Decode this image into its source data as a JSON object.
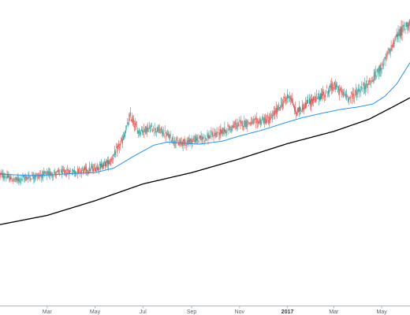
{
  "chart_data": {
    "type": "candlestick",
    "title": "",
    "xlabel": "",
    "ylabel": "",
    "x_tick_labels": [
      {
        "label": "Mar",
        "date": "2016-03-01",
        "bold": false
      },
      {
        "label": "May",
        "date": "2016-05-01",
        "bold": false
      },
      {
        "label": "Jul",
        "date": "2016-07-01",
        "bold": false
      },
      {
        "label": "Sep",
        "date": "2016-09-01",
        "bold": false
      },
      {
        "label": "Nov",
        "date": "2016-11-01",
        "bold": false
      },
      {
        "label": "2017",
        "date": "2017-01-01",
        "bold": true
      },
      {
        "label": "Mar",
        "date": "2017-03-01",
        "bold": false
      },
      {
        "label": "May",
        "date": "2017-05-01",
        "bold": false
      }
    ],
    "x_range": [
      "2016-01-01",
      "2017-06-06"
    ],
    "y_range": [
      0,
      100
    ],
    "grid": false,
    "legend": "none",
    "colors": {
      "up": "#26a69a",
      "down": "#ef5350",
      "ma_fast": "#2196f3",
      "ma_slow": "#000000",
      "axis": "#b2b5be",
      "text": "#5a5f6a"
    },
    "price_path": [
      [
        "2016-01-01",
        43
      ],
      [
        "2016-01-20",
        41
      ],
      [
        "2016-02-05",
        42
      ],
      [
        "2016-03-01",
        43
      ],
      [
        "2016-03-20",
        43.5
      ],
      [
        "2016-04-10",
        44
      ],
      [
        "2016-05-01",
        45
      ],
      [
        "2016-05-20",
        47
      ],
      [
        "2016-06-05",
        54
      ],
      [
        "2016-06-15",
        62
      ],
      [
        "2016-06-25",
        57
      ],
      [
        "2016-07-10",
        58
      ],
      [
        "2016-07-25",
        57
      ],
      [
        "2016-08-05",
        55
      ],
      [
        "2016-08-15",
        53
      ],
      [
        "2016-09-01",
        54
      ],
      [
        "2016-09-20",
        55
      ],
      [
        "2016-10-10",
        57
      ],
      [
        "2016-11-01",
        59.5
      ],
      [
        "2016-11-20",
        60
      ],
      [
        "2016-12-10",
        61
      ],
      [
        "2016-12-25",
        66
      ],
      [
        "2017-01-04",
        69
      ],
      [
        "2017-01-12",
        63
      ],
      [
        "2017-01-25",
        66
      ],
      [
        "2017-02-15",
        69
      ],
      [
        "2017-03-01",
        72
      ],
      [
        "2017-03-10",
        70
      ],
      [
        "2017-03-20",
        68
      ],
      [
        "2017-04-01",
        70
      ],
      [
        "2017-04-20",
        74
      ],
      [
        "2017-05-05",
        80
      ],
      [
        "2017-05-20",
        88
      ],
      [
        "2017-06-06",
        93
      ]
    ],
    "ma_fast_path": [
      [
        "2016-01-01",
        43
      ],
      [
        "2016-02-15",
        42.5
      ],
      [
        "2016-04-01",
        43.2
      ],
      [
        "2016-05-01",
        43.5
      ],
      [
        "2016-05-25",
        45
      ],
      [
        "2016-06-20",
        49
      ],
      [
        "2016-07-15",
        52.5
      ],
      [
        "2016-08-01",
        53.5
      ],
      [
        "2016-08-20",
        53.2
      ],
      [
        "2016-09-10",
        52.8
      ],
      [
        "2016-10-10",
        53.8
      ],
      [
        "2016-11-01",
        55.5
      ],
      [
        "2016-12-01",
        57.5
      ],
      [
        "2016-12-25",
        59.5
      ],
      [
        "2017-01-20",
        61.5
      ],
      [
        "2017-02-15",
        63
      ],
      [
        "2017-03-10",
        64.2
      ],
      [
        "2017-04-01",
        65
      ],
      [
        "2017-04-20",
        66
      ],
      [
        "2017-05-05",
        68.5
      ],
      [
        "2017-05-20",
        72.5
      ],
      [
        "2017-06-06",
        79.5
      ]
    ],
    "ma_slow_path": [
      [
        "2016-01-01",
        26.5
      ],
      [
        "2016-03-01",
        29.5
      ],
      [
        "2016-05-01",
        34.3
      ],
      [
        "2016-07-01",
        39.8
      ],
      [
        "2016-09-01",
        43.5
      ],
      [
        "2016-11-01",
        48
      ],
      [
        "2017-01-01",
        53
      ],
      [
        "2017-03-01",
        57
      ],
      [
        "2017-04-15",
        61
      ],
      [
        "2017-05-15",
        65
      ],
      [
        "2017-06-06",
        68
      ]
    ]
  }
}
